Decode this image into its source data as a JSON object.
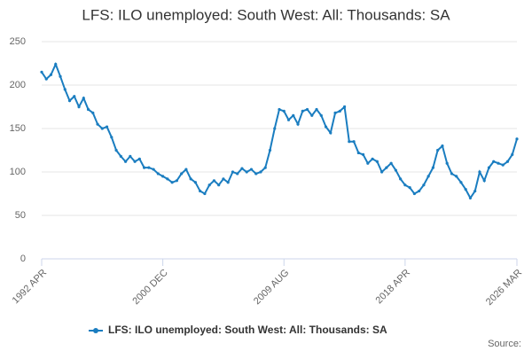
{
  "chart_data": {
    "type": "line",
    "title": "LFS: ILO unemployed: South West: All: Thousands: SA",
    "source": "Source:",
    "categories": [
      "1992 APR",
      null,
      null,
      null,
      null,
      null,
      null,
      null,
      null,
      null,
      null,
      null,
      null,
      null,
      null,
      null,
      null,
      null,
      null,
      null,
      null,
      null,
      null,
      null,
      null,
      null,
      "2000 DEC",
      null,
      null,
      null,
      null,
      null,
      null,
      null,
      null,
      null,
      null,
      null,
      null,
      null,
      null,
      null,
      null,
      null,
      null,
      null,
      null,
      null,
      null,
      null,
      null,
      null,
      "2009 AUG",
      null,
      null,
      null,
      null,
      null,
      null,
      null,
      null,
      null,
      null,
      null,
      null,
      null,
      null,
      null,
      null,
      null,
      null,
      null,
      null,
      null,
      null,
      null,
      null,
      null,
      "2018 APR",
      null,
      null,
      null,
      null,
      null,
      null,
      null,
      null,
      null,
      null,
      null,
      null,
      null,
      null,
      null,
      null,
      null,
      null,
      null,
      null,
      null,
      null,
      null,
      "2026 MAR"
    ],
    "series": [
      {
        "name": "LFS: ILO unemployed: South West: All: Thousands: SA",
        "color": "#1a7dc0",
        "values": [
          215,
          207,
          212,
          224,
          210,
          195,
          182,
          187,
          175,
          185,
          172,
          168,
          155,
          150,
          152,
          140,
          125,
          118,
          112,
          118,
          112,
          115,
          105,
          105,
          103,
          98,
          95,
          92,
          88,
          90,
          98,
          103,
          92,
          88,
          78,
          75,
          85,
          90,
          85,
          92,
          88,
          100,
          98,
          104,
          100,
          103,
          98,
          100,
          105,
          125,
          150,
          172,
          170,
          160,
          165,
          155,
          170,
          172,
          165,
          172,
          165,
          152,
          145,
          168,
          170,
          175,
          135,
          135,
          122,
          120,
          110,
          115,
          112,
          100,
          105,
          110,
          102,
          92,
          85,
          82,
          75,
          78,
          85,
          95,
          105,
          125,
          130,
          110,
          98,
          95,
          88,
          80,
          70,
          78,
          100,
          90,
          105,
          112,
          110,
          108,
          112,
          120,
          138
        ]
      }
    ],
    "ylim": [
      0,
      250
    ],
    "yticks": [
      0,
      50,
      100,
      150,
      200,
      250
    ],
    "grid": true
  }
}
